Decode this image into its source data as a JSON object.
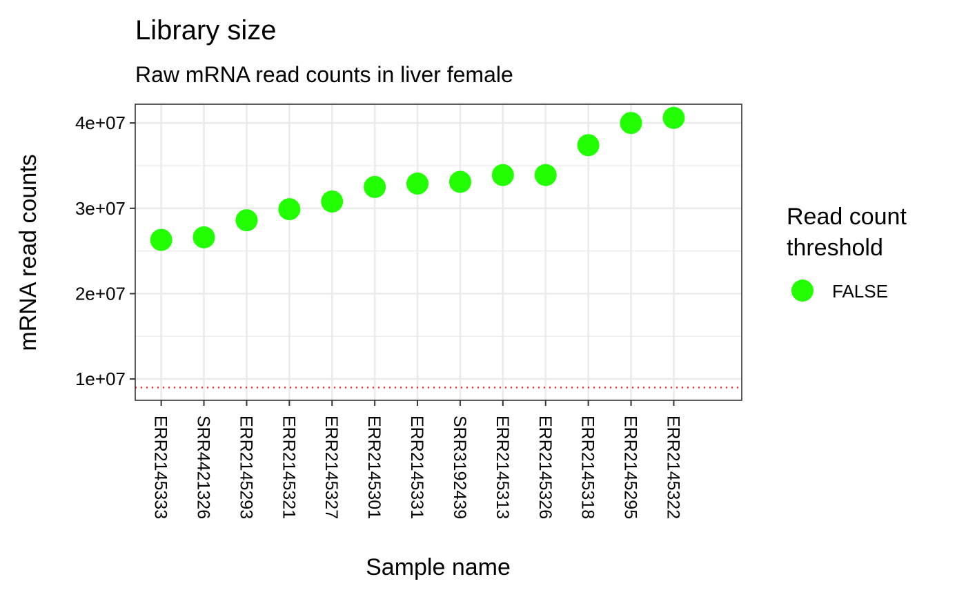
{
  "chart_data": {
    "type": "scatter",
    "title": "Library size",
    "subtitle": "Raw mRNA read counts in liver female",
    "xlabel": "Sample name",
    "ylabel": "mRNA read counts",
    "categories": [
      "ERR2145333",
      "SRR4421326",
      "ERR2145293",
      "ERR2145321",
      "ERR2145327",
      "ERR2145301",
      "ERR2145331",
      "SRR3192439",
      "ERR2145313",
      "ERR2145326",
      "ERR2145318",
      "ERR2145295",
      "ERR2145322"
    ],
    "series": [
      {
        "name": "FALSE",
        "color": "#22ff00",
        "values": [
          26300000,
          26600000,
          28600000,
          29900000,
          30800000,
          32500000,
          32900000,
          33100000,
          33900000,
          33900000,
          37400000,
          40000000,
          40600000
        ]
      }
    ],
    "threshold": {
      "value": 9000000,
      "color": "#ff0000",
      "style": "dotted"
    },
    "ylim": [
      7500000,
      42200000
    ],
    "y_ticks": [
      10000000,
      20000000,
      30000000,
      40000000
    ],
    "y_tick_labels": [
      "1e+07",
      "2e+07",
      "3e+07",
      "4e+07"
    ],
    "grid": true,
    "legend": {
      "title_lines": [
        "Read count",
        "threshold"
      ],
      "entries": [
        {
          "label": "FALSE",
          "color": "#22ff00"
        }
      ],
      "position": "right"
    }
  }
}
